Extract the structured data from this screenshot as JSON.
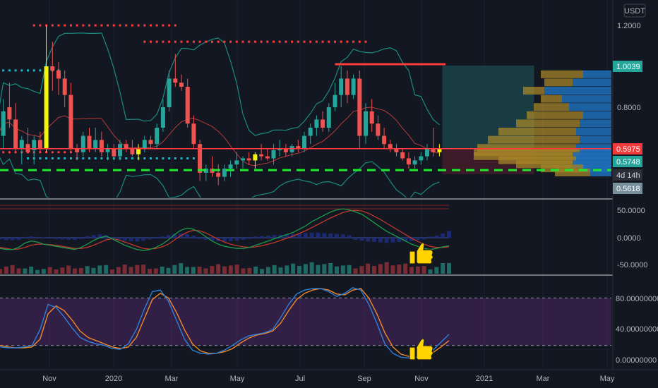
{
  "currency_label": "USDT",
  "colors": {
    "background": "#131722",
    "up": "#26a69a",
    "down": "#ef5350",
    "highlight": "#f5f50a",
    "grid": "#1e222d",
    "pane_border": "#d1d4dc",
    "support": "#1ee830",
    "resistance": "#ff3b3b",
    "bollinger": "#1b8b80",
    "basis": "#b23b3b",
    "macd_line": "#1b9b4a",
    "signal_line": "#c0392b",
    "stoch_k": "#2f7fd8",
    "stoch_d": "#f0892b",
    "stoch_band": "#6d2e8a",
    "tag_green": "#26a69a",
    "tag_red": "#ef3b3b",
    "tag_gray": "#78909c",
    "tag_dark": "#2a2e39"
  },
  "icons": [
    "thumbs-up-icon",
    "thumbs-up-icon"
  ],
  "chart_data": [
    {
      "type": "candlestick",
      "y_axis_ticks": [
        "1.2000",
        "0.8000"
      ],
      "price_tags": {
        "target": "1.0039",
        "current": "0.5975",
        "last": "0.5748",
        "countdown": "4d 14h",
        "support": "0.5618"
      },
      "levels": {
        "resistance": 0.5975,
        "support": 0.5618,
        "target": 1.0039
      },
      "x_axis_labels": [
        "Nov",
        "2020",
        "Mar",
        "May",
        "Jul",
        "Sep",
        "Nov",
        "2021",
        "Mar",
        "May"
      ],
      "candles": [
        [
          0.66,
          0.74,
          0.62,
          0.66
        ],
        [
          0.66,
          0.84,
          0.6,
          0.78
        ],
        [
          0.8,
          0.92,
          0.7,
          0.74
        ],
        [
          0.74,
          0.82,
          0.58,
          0.6
        ],
        [
          0.6,
          0.66,
          0.52,
          0.64
        ],
        [
          0.62,
          0.7,
          0.58,
          0.58
        ],
        [
          0.59,
          0.66,
          0.52,
          0.64
        ],
        [
          0.64,
          0.68,
          0.58,
          0.6
        ],
        [
          0.6,
          1.2,
          0.58,
          1.0
        ],
        [
          1.0,
          1.12,
          0.88,
          0.98
        ],
        [
          0.98,
          1.02,
          0.86,
          0.94
        ],
        [
          0.94,
          0.98,
          0.8,
          0.86
        ],
        [
          0.86,
          0.92,
          0.58,
          0.6
        ],
        [
          0.6,
          0.62,
          0.54,
          0.58
        ],
        [
          0.58,
          0.68,
          0.56,
          0.66
        ],
        [
          0.66,
          0.7,
          0.58,
          0.6
        ],
        [
          0.6,
          0.7,
          0.58,
          0.64
        ],
        [
          0.64,
          0.68,
          0.56,
          0.58
        ],
        [
          0.58,
          0.62,
          0.54,
          0.6
        ],
        [
          0.6,
          0.62,
          0.54,
          0.56
        ],
        [
          0.56,
          0.64,
          0.54,
          0.62
        ],
        [
          0.62,
          0.64,
          0.58,
          0.6
        ],
        [
          0.6,
          0.64,
          0.56,
          0.57
        ],
        [
          0.57,
          0.62,
          0.54,
          0.6
        ],
        [
          0.6,
          0.66,
          0.58,
          0.64
        ],
        [
          0.64,
          0.66,
          0.6,
          0.62
        ],
        [
          0.62,
          0.72,
          0.6,
          0.7
        ],
        [
          0.7,
          0.84,
          0.68,
          0.8
        ],
        [
          0.8,
          0.98,
          0.78,
          0.94
        ],
        [
          0.94,
          1.06,
          0.9,
          0.92
        ],
        [
          0.92,
          0.96,
          0.88,
          0.9
        ],
        [
          0.9,
          0.94,
          0.7,
          0.72
        ],
        [
          0.72,
          0.76,
          0.6,
          0.62
        ],
        [
          0.62,
          0.64,
          0.44,
          0.48
        ],
        [
          0.48,
          0.52,
          0.44,
          0.5
        ],
        [
          0.5,
          0.56,
          0.46,
          0.48
        ],
        [
          0.48,
          0.52,
          0.42,
          0.46
        ],
        [
          0.46,
          0.52,
          0.44,
          0.5
        ],
        [
          0.5,
          0.54,
          0.46,
          0.52
        ],
        [
          0.52,
          0.58,
          0.5,
          0.54
        ],
        [
          0.54,
          0.56,
          0.5,
          0.55
        ],
        [
          0.55,
          0.58,
          0.52,
          0.54
        ],
        [
          0.54,
          0.58,
          0.5,
          0.57
        ],
        [
          0.57,
          0.62,
          0.54,
          0.56
        ],
        [
          0.56,
          0.6,
          0.54,
          0.55
        ],
        [
          0.55,
          0.62,
          0.52,
          0.59
        ],
        [
          0.59,
          0.64,
          0.56,
          0.6
        ],
        [
          0.6,
          0.62,
          0.56,
          0.58
        ],
        [
          0.58,
          0.62,
          0.56,
          0.61
        ],
        [
          0.61,
          0.64,
          0.58,
          0.6
        ],
        [
          0.6,
          0.68,
          0.58,
          0.66
        ],
        [
          0.66,
          0.72,
          0.62,
          0.7
        ],
        [
          0.7,
          0.76,
          0.66,
          0.74
        ],
        [
          0.74,
          0.78,
          0.68,
          0.7
        ],
        [
          0.7,
          0.82,
          0.68,
          0.8
        ],
        [
          0.8,
          0.92,
          0.78,
          0.86
        ],
        [
          0.86,
          1.0,
          0.8,
          0.94
        ],
        [
          0.94,
          0.98,
          0.82,
          0.86
        ],
        [
          0.86,
          0.96,
          0.84,
          0.94
        ],
        [
          0.94,
          0.98,
          0.6,
          0.66
        ],
        [
          0.66,
          0.82,
          0.62,
          0.78
        ],
        [
          0.78,
          0.84,
          0.68,
          0.72
        ],
        [
          0.72,
          0.76,
          0.64,
          0.66
        ],
        [
          0.66,
          0.7,
          0.6,
          0.62
        ],
        [
          0.62,
          0.64,
          0.58,
          0.6
        ],
        [
          0.6,
          0.62,
          0.56,
          0.58
        ],
        [
          0.58,
          0.6,
          0.54,
          0.55
        ],
        [
          0.55,
          0.58,
          0.5,
          0.52
        ],
        [
          0.52,
          0.56,
          0.5,
          0.54
        ],
        [
          0.54,
          0.58,
          0.52,
          0.56
        ],
        [
          0.56,
          0.62,
          0.54,
          0.6
        ],
        [
          0.6,
          0.7,
          0.56,
          0.58
        ],
        [
          0.58,
          0.62,
          0.56,
          0.5975
        ]
      ],
      "highlight_candles": [
        8,
        23,
        42,
        72
      ],
      "x_span_candles": 108
    },
    {
      "type": "macd",
      "y_axis_ticks": [
        "50.0000",
        "0.0000",
        "-50.0000"
      ],
      "macd": [
        -20,
        -22,
        -22,
        -18,
        -10,
        -6,
        -8,
        -12,
        -14,
        -16,
        -18,
        -20,
        -22,
        -18,
        -12,
        -5,
        0,
        3,
        -2,
        -8,
        -14,
        -18,
        -22,
        -24,
        -22,
        -18,
        -12,
        -4,
        6,
        14,
        18,
        16,
        10,
        2,
        -6,
        -12,
        -16,
        -18,
        -20,
        -20,
        -18,
        -14,
        -10,
        -6,
        -2,
        2,
        6,
        10,
        16,
        22,
        30,
        36,
        42,
        48,
        52,
        54,
        52,
        48,
        44,
        36,
        28,
        20,
        12,
        6,
        0,
        -6,
        -12,
        -16,
        -20,
        -22,
        -20,
        -17,
        -15
      ],
      "signal": [
        -18,
        -20,
        -22,
        -21,
        -18,
        -14,
        -12,
        -12,
        -13,
        -14,
        -16,
        -18,
        -20,
        -20,
        -18,
        -14,
        -9,
        -4,
        -2,
        -4,
        -8,
        -12,
        -16,
        -20,
        -21,
        -20,
        -17,
        -12,
        -4,
        4,
        10,
        14,
        13,
        9,
        3,
        -3,
        -8,
        -12,
        -15,
        -17,
        -18,
        -17,
        -15,
        -12,
        -9,
        -5,
        -1,
        3,
        8,
        13,
        19,
        25,
        31,
        37,
        42,
        47,
        50,
        51,
        50,
        46,
        40,
        34,
        27,
        20,
        13,
        6,
        -1,
        -7,
        -12,
        -16,
        -18,
        -18,
        -17
      ],
      "histogram": [
        -4,
        -6,
        -6,
        -5,
        2,
        3,
        2,
        1,
        -2,
        -3,
        -4,
        -5,
        -5,
        -3,
        4,
        6,
        8,
        6,
        -3,
        -5,
        -7,
        -8,
        -9,
        -7,
        -4,
        -2,
        3,
        6,
        9,
        10,
        8,
        5,
        -3,
        -5,
        -7,
        -8,
        -9,
        -8,
        -7,
        -5,
        -3,
        3,
        4,
        5,
        6,
        7,
        8,
        9,
        10,
        11,
        12,
        12,
        11,
        10,
        9,
        8,
        6,
        -5,
        -7,
        -9,
        -10,
        -11,
        -12,
        -11,
        -10,
        -9,
        -8,
        -6,
        -4,
        3,
        5,
        10,
        16
      ]
    },
    {
      "type": "stochastic",
      "y_axis_ticks": [
        "80.00000000",
        "40.00000000",
        "0.00000000"
      ],
      "band": [
        20,
        80
      ],
      "k": [
        18,
        17,
        17,
        18,
        20,
        40,
        72,
        68,
        56,
        42,
        30,
        25,
        22,
        20,
        16,
        15,
        22,
        40,
        66,
        88,
        90,
        76,
        52,
        28,
        14,
        10,
        9,
        10,
        14,
        20,
        27,
        32,
        34,
        36,
        40,
        55,
        72,
        85,
        90,
        92,
        92,
        88,
        82,
        86,
        93,
        90,
        72,
        48,
        22,
        10,
        5,
        4,
        5,
        8,
        14,
        24,
        34
      ],
      "d": [
        20,
        18,
        17,
        17,
        18,
        28,
        60,
        70,
        64,
        52,
        38,
        30,
        26,
        22,
        18,
        16,
        18,
        30,
        54,
        78,
        86,
        80,
        62,
        40,
        22,
        13,
        10,
        10,
        12,
        16,
        23,
        29,
        33,
        35,
        38,
        48,
        64,
        78,
        86,
        90,
        92,
        90,
        85,
        84,
        90,
        92,
        80,
        60,
        36,
        18,
        9,
        6,
        5,
        7,
        11,
        18,
        26
      ]
    }
  ]
}
